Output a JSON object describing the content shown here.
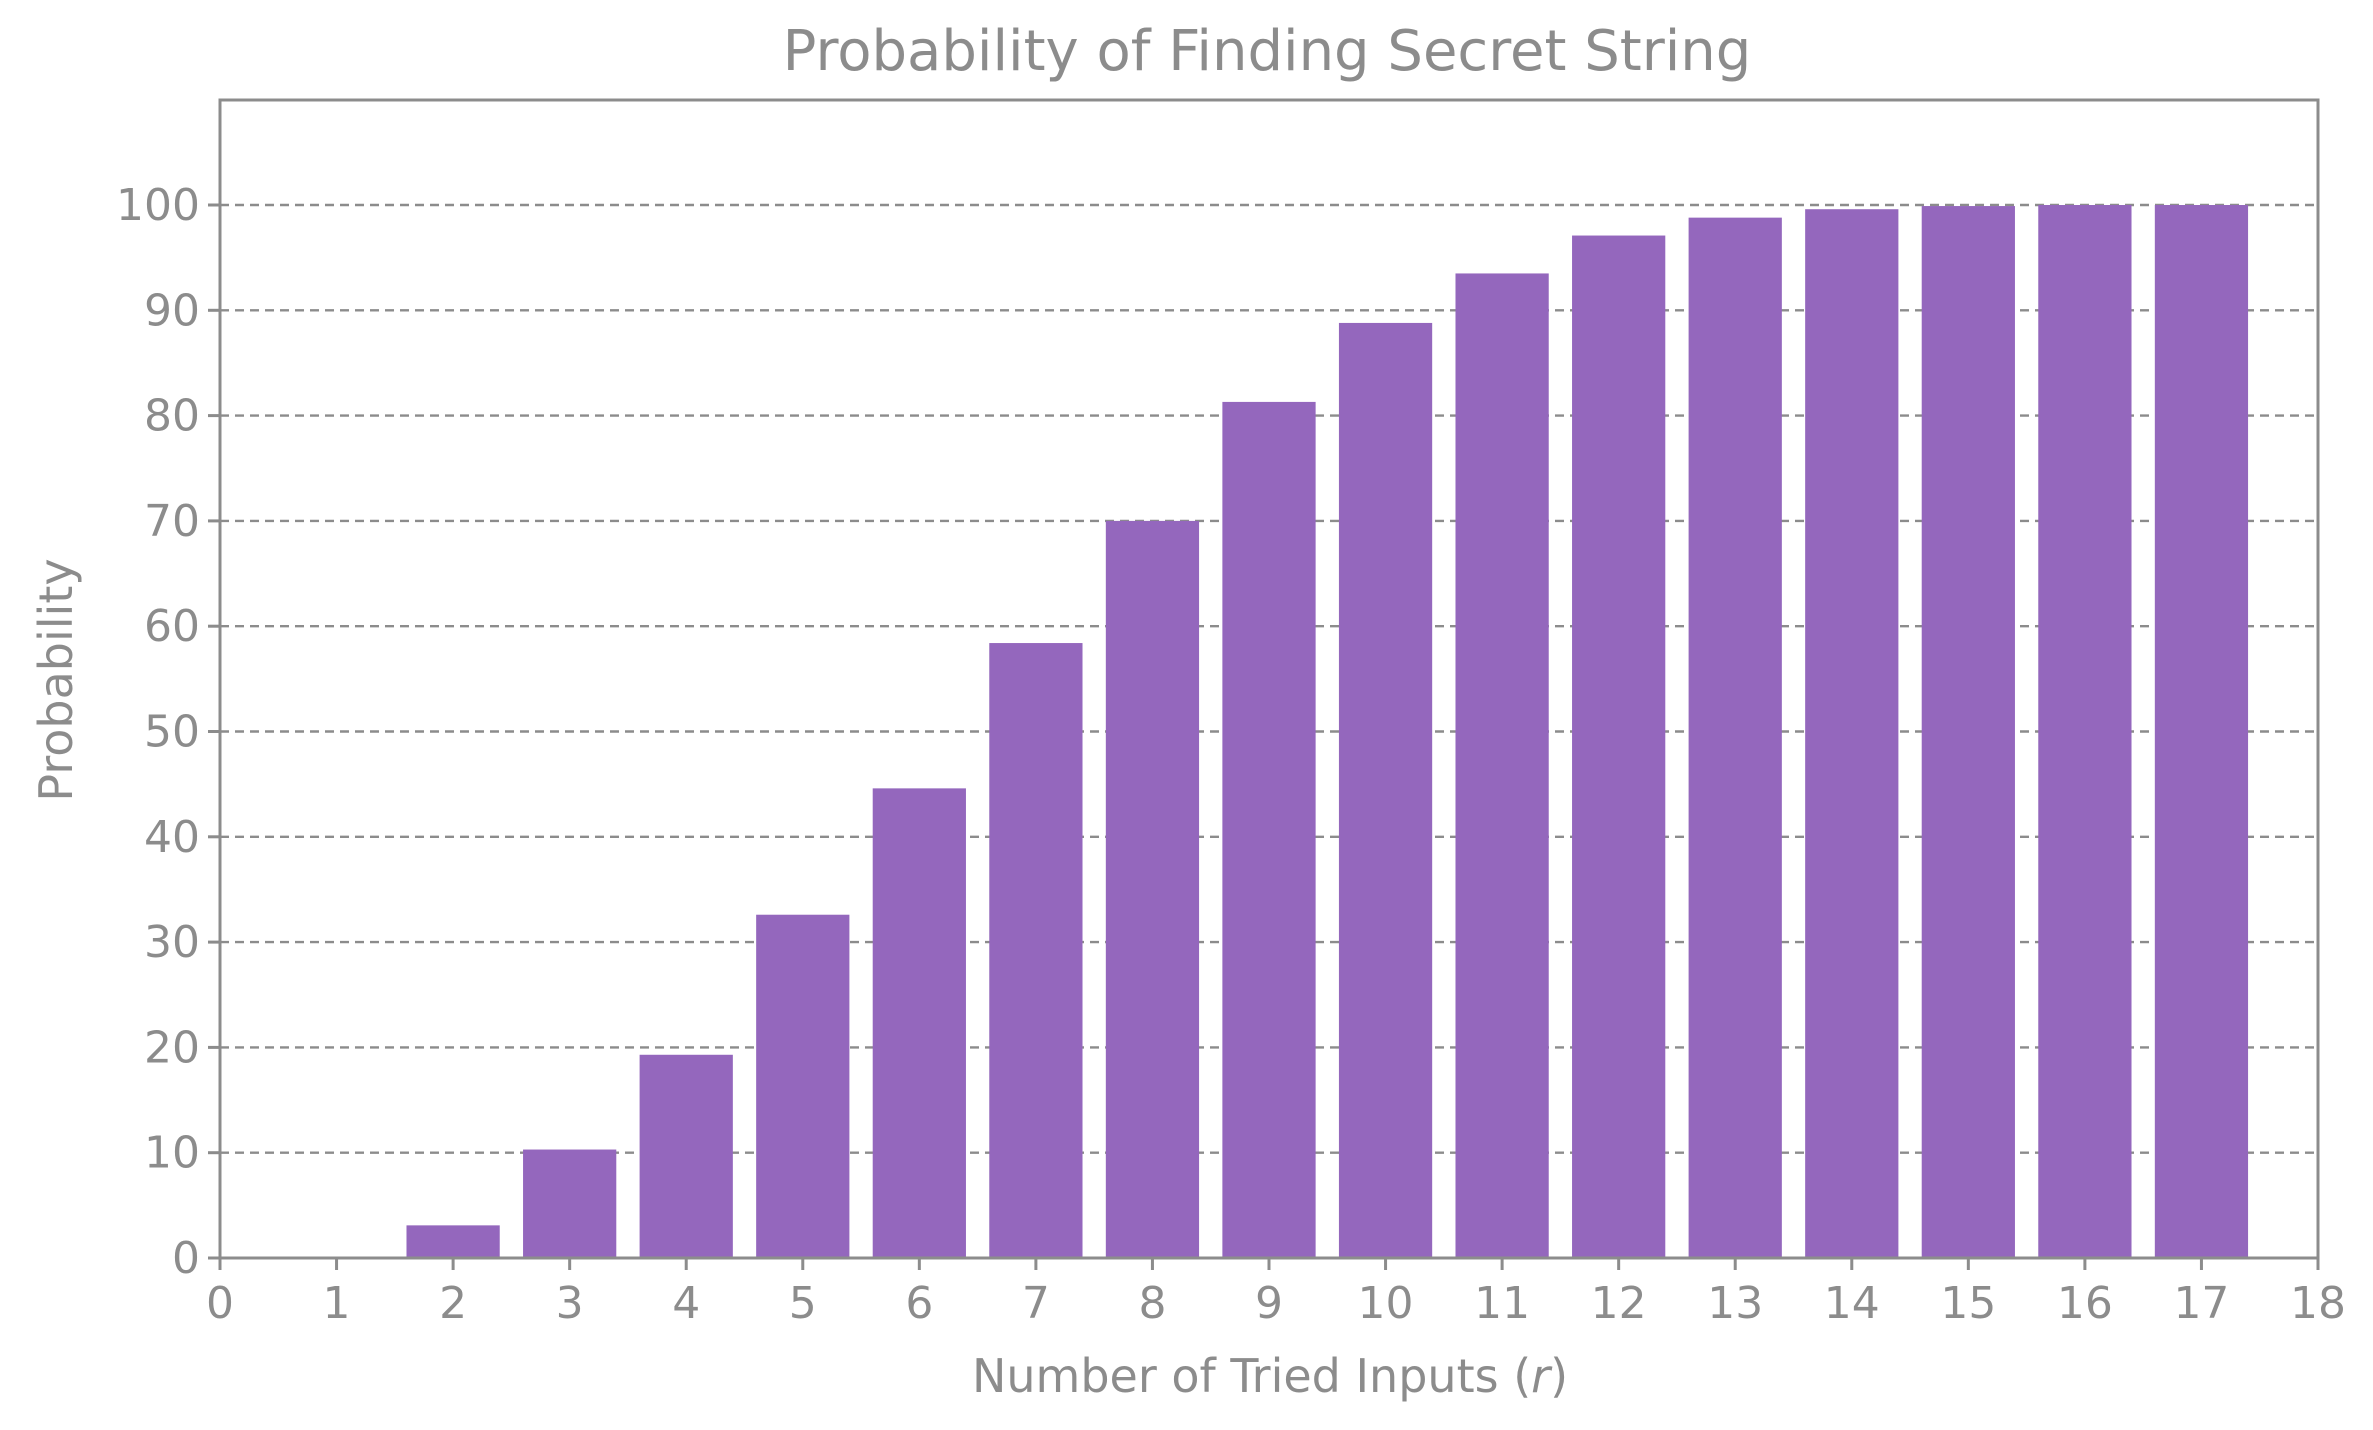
{
  "chart_data": {
    "type": "bar",
    "title": "Probability of Finding Secret String",
    "xlabel": "Number of Tried Inputs (",
    "xlabel_var": "r",
    "xlabel_end": ")",
    "ylabel": "Probability",
    "x": [
      1,
      2,
      3,
      4,
      5,
      6,
      7,
      8,
      9,
      10,
      11,
      12,
      13,
      14,
      15,
      16,
      17
    ],
    "values": [
      0,
      3.1,
      10.3,
      19.3,
      32.6,
      44.6,
      58.4,
      70.0,
      81.3,
      88.8,
      93.5,
      97.1,
      98.8,
      99.6,
      99.9,
      100,
      100
    ],
    "xlim": [
      0,
      18
    ],
    "ylim": [
      0,
      100
    ],
    "xticks": [
      0,
      1,
      2,
      3,
      4,
      5,
      6,
      7,
      8,
      9,
      10,
      11,
      12,
      13,
      14,
      15,
      16,
      17,
      18
    ],
    "yticks": [
      0,
      10,
      20,
      30,
      40,
      50,
      60,
      70,
      80,
      90,
      100
    ],
    "grid": "horizontal dashed",
    "bar_color": "#9467bd",
    "text_color": "#8c8c8c"
  }
}
